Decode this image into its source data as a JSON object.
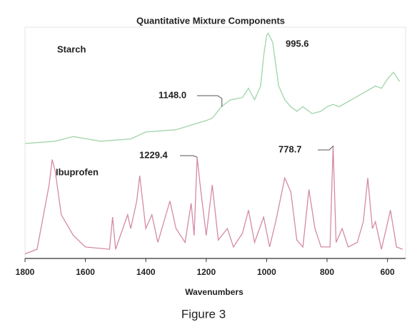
{
  "chart_data": {
    "type": "line",
    "title": "Quantitative Mixture Components",
    "x_label": "Wavenumbers",
    "caption": "Figure 3",
    "xlim": [
      1800,
      540
    ],
    "xticks": [
      1800,
      1600,
      1400,
      1200,
      1000,
      800,
      600
    ],
    "ylim": [
      0,
      100
    ],
    "series": [
      {
        "name": "Starch",
        "color": "#9fd4aa",
        "x": [
          1800,
          1700,
          1640,
          1550,
          1450,
          1400,
          1300,
          1250,
          1200,
          1180,
          1150,
          1120,
          1080,
          1060,
          1040,
          1020,
          1010,
          1000,
          995,
          980,
          960,
          940,
          920,
          900,
          880,
          850,
          820,
          800,
          780,
          760,
          720,
          680,
          640,
          620,
          600,
          580,
          560
        ],
        "values": [
          50,
          51,
          53,
          51,
          52,
          55,
          56,
          58,
          60,
          61,
          66,
          69,
          70,
          74,
          69,
          75,
          88,
          97,
          98,
          94,
          75,
          69,
          66,
          64,
          66,
          63,
          64,
          66,
          67,
          66,
          69,
          72,
          75,
          74,
          78,
          81,
          77
        ]
      },
      {
        "name": "Ibuprofen",
        "color": "#d48aa8",
        "x": [
          1800,
          1760,
          1720,
          1710,
          1700,
          1680,
          1640,
          1600,
          1520,
          1510,
          1500,
          1460,
          1450,
          1430,
          1420,
          1400,
          1380,
          1360,
          1320,
          1300,
          1270,
          1250,
          1240,
          1230,
          1220,
          1200,
          1180,
          1160,
          1130,
          1110,
          1080,
          1060,
          1040,
          1010,
          990,
          970,
          940,
          920,
          900,
          880,
          860,
          840,
          820,
          790,
          780,
          770,
          750,
          730,
          700,
          680,
          665,
          650,
          640,
          620,
          590,
          570,
          550
        ],
        "values": [
          2,
          4,
          32,
          43,
          38,
          19,
          10,
          5,
          4,
          18,
          4,
          19,
          13,
          25,
          36,
          13,
          19,
          7,
          25,
          13,
          7,
          24,
          10,
          44,
          32,
          10,
          32,
          8,
          13,
          5,
          11,
          21,
          7,
          18,
          5,
          16,
          35,
          29,
          8,
          5,
          30,
          13,
          5,
          5,
          49,
          7,
          13,
          5,
          7,
          16,
          35,
          13,
          16,
          4,
          21,
          5,
          4
        ]
      }
    ],
    "annotations": [
      {
        "label": "995.6",
        "x": 995.6,
        "series": 0
      },
      {
        "label": "1148.0",
        "x": 1148.0,
        "series": 0
      },
      {
        "label": "1229.4",
        "x": 1229.4,
        "series": 1
      },
      {
        "label": "778.7",
        "x": 778.7,
        "series": 1
      }
    ]
  }
}
